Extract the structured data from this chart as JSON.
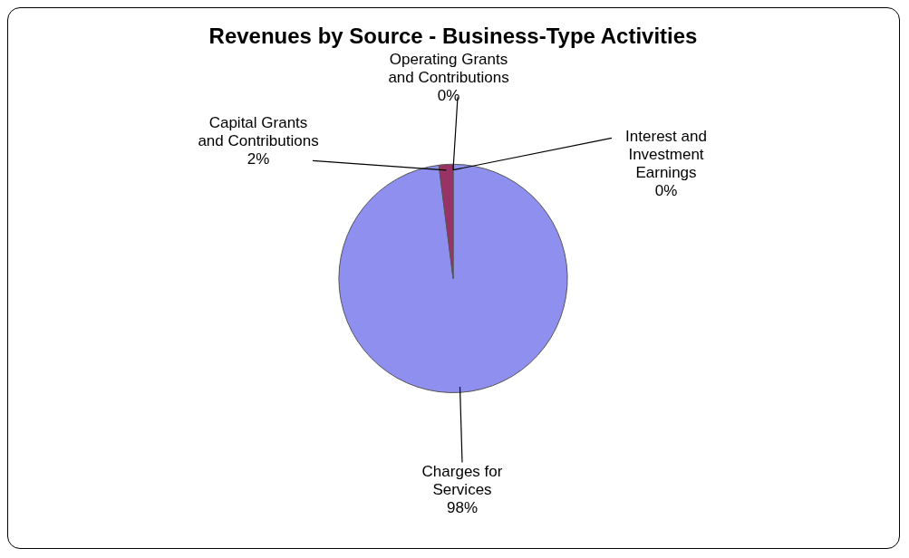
{
  "chart_data": {
    "type": "pie",
    "title": "Revenues by Source - Business-Type Activities",
    "categories": [
      "Charges for Services",
      "Capital Grants and Contributions",
      "Operating Grants and Contributions",
      "Interest and Investment Earnings"
    ],
    "values": [
      98,
      2,
      0,
      0
    ],
    "value_labels": [
      "98%",
      "2%",
      "0%",
      "0%"
    ],
    "colors": [
      "#8f8fef",
      "#993366",
      "#ffffcc",
      "#33cccc"
    ],
    "legend": false
  }
}
